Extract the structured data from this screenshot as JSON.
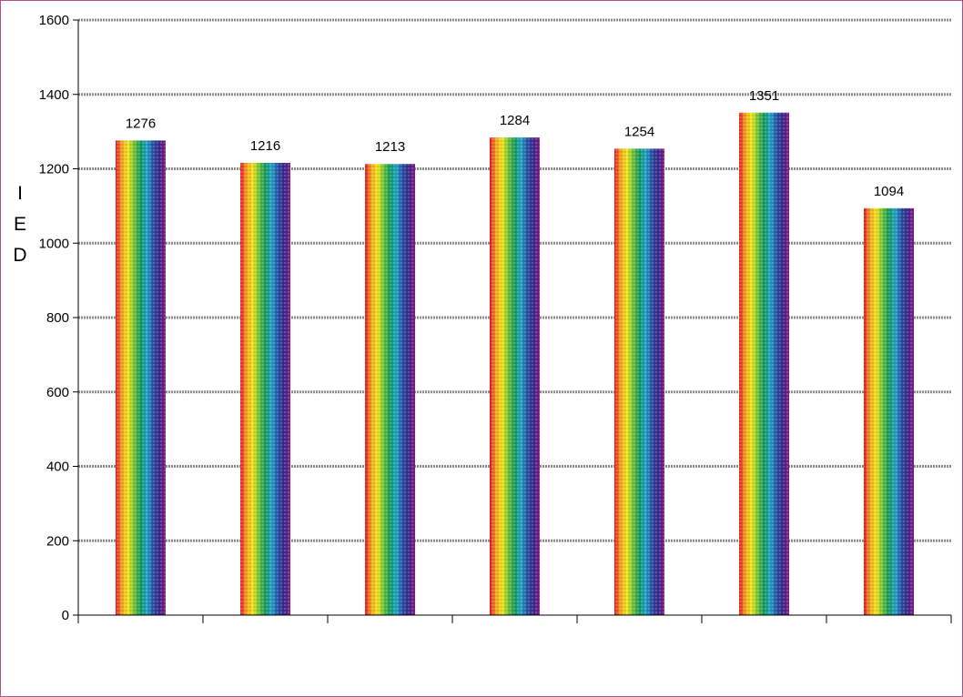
{
  "chart_data": {
    "type": "bar",
    "categories": [
      "",
      "",
      "",
      "",
      "",
      "",
      ""
    ],
    "series": [
      {
        "values": [
          1276,
          1216,
          1213,
          1284,
          1254,
          1351,
          1094
        ]
      }
    ],
    "data_labels": [
      "1276",
      "1216",
      "1213",
      "1284",
      "1254",
      "1351",
      "1094"
    ],
    "title": "",
    "xlabel": "",
    "ylabel": "IED",
    "ylabel_letters": [
      "I",
      "E",
      "D"
    ],
    "ylim": [
      0,
      1600
    ],
    "yticks": [
      0,
      200,
      400,
      600,
      800,
      1000,
      1200,
      1400,
      1600
    ],
    "ytick_labels": [
      "0",
      "200",
      "400",
      "600",
      "800",
      "1000",
      "1200",
      "1400",
      "1600"
    ],
    "grid": true,
    "legend": "none",
    "bar_fill": "vertical rainbow stripes",
    "stripe_colors": [
      "#e8142a",
      "#f4a320",
      "#f3e61b",
      "#6fc23a",
      "#149a5e",
      "#22a6c9",
      "#2a4fa6",
      "#3a2a8a",
      "#8a1a8a"
    ],
    "gridline_color": "#8c8c8c",
    "frame_color": "#b0568c"
  }
}
